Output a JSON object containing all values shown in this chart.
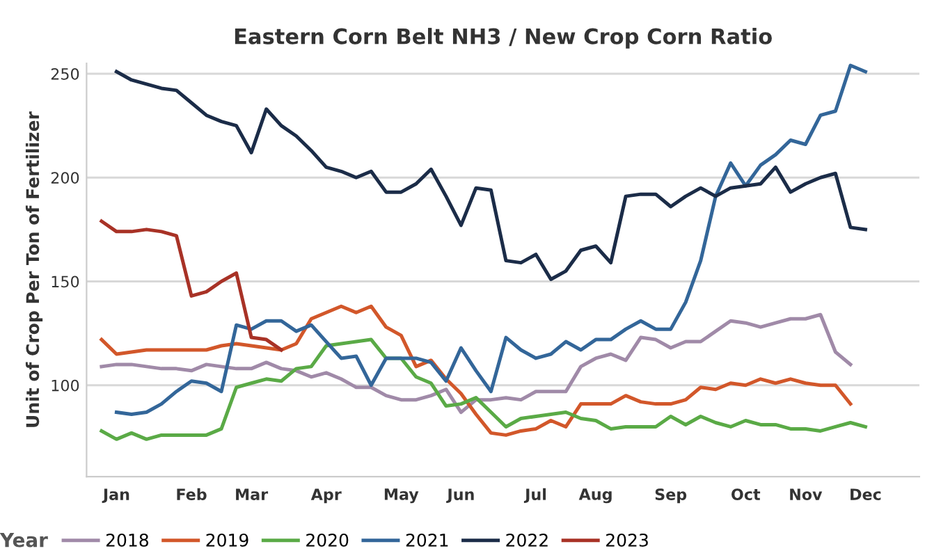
{
  "chart_data": {
    "type": "line",
    "title": "Eastern Corn Belt NH3 / New Crop Corn Ratio",
    "ylabel": "Unit of Crop Per Ton of Fertilizer",
    "legend_title": "Year",
    "categories": [
      null,
      "Jan",
      null,
      null,
      null,
      null,
      "Feb",
      null,
      null,
      null,
      "Mar",
      null,
      null,
      null,
      null,
      "Apr",
      null,
      null,
      null,
      null,
      "May",
      null,
      null,
      null,
      "Jun",
      null,
      null,
      null,
      null,
      "Jul",
      null,
      null,
      null,
      "Aug",
      null,
      null,
      null,
      null,
      "Sep",
      null,
      null,
      null,
      null,
      "Oct",
      null,
      null,
      null,
      "Nov",
      null,
      null,
      null,
      "Dec"
    ],
    "series": [
      {
        "name": "2018",
        "color": "#a08aa8",
        "values": [
          109,
          110,
          110,
          109,
          108,
          108,
          107,
          110,
          109,
          108,
          108,
          111,
          108,
          107,
          104,
          106,
          103,
          99,
          99,
          95,
          93,
          93,
          95,
          98,
          87,
          93,
          93,
          94,
          93,
          97,
          97,
          97,
          109,
          113,
          115,
          112,
          123,
          122,
          118,
          121,
          121,
          126,
          131,
          130,
          128,
          130,
          132,
          132,
          134,
          116,
          110,
          null
        ]
      },
      {
        "name": "2019",
        "color": "#d2572a",
        "values": [
          122,
          115,
          116,
          117,
          117,
          117,
          117,
          117,
          119,
          120,
          119,
          118,
          117,
          120,
          132,
          135,
          138,
          135,
          138,
          128,
          124,
          109,
          112,
          103,
          96,
          86,
          77,
          76,
          78,
          79,
          83,
          80,
          91,
          91,
          91,
          95,
          92,
          91,
          91,
          93,
          99,
          98,
          101,
          100,
          103,
          101,
          103,
          101,
          100,
          100,
          91,
          null
        ]
      },
      {
        "name": "2020",
        "color": "#5aaa46",
        "values": [
          78,
          74,
          77,
          74,
          76,
          76,
          76,
          76,
          79,
          99,
          101,
          103,
          102,
          108,
          109,
          119,
          120,
          121,
          122,
          113,
          113,
          104,
          101,
          90,
          91,
          94,
          87,
          80,
          84,
          85,
          86,
          87,
          84,
          83,
          79,
          80,
          80,
          80,
          85,
          81,
          85,
          82,
          80,
          83,
          81,
          81,
          79,
          79,
          78,
          80,
          82,
          80
        ]
      },
      {
        "name": "2021",
        "color": "#336699",
        "values": [
          null,
          87,
          86,
          87,
          91,
          97,
          102,
          101,
          97,
          129,
          127,
          131,
          131,
          126,
          129,
          121,
          113,
          114,
          100,
          113,
          113,
          113,
          111,
          102,
          118,
          107,
          97,
          123,
          117,
          113,
          115,
          121,
          117,
          122,
          122,
          127,
          131,
          127,
          127,
          140,
          160,
          191,
          207,
          196,
          206,
          211,
          218,
          216,
          230,
          232,
          254,
          251
        ]
      },
      {
        "name": "2022",
        "color": "#1b2c48",
        "values": [
          null,
          251,
          247,
          245,
          243,
          242,
          236,
          230,
          227,
          225,
          212,
          233,
          225,
          220,
          213,
          205,
          203,
          200,
          203,
          193,
          193,
          197,
          204,
          191,
          177,
          195,
          194,
          160,
          159,
          163,
          151,
          155,
          165,
          167,
          159,
          191,
          192,
          192,
          186,
          191,
          195,
          191,
          195,
          196,
          197,
          205,
          193,
          197,
          200,
          202,
          176,
          175
        ]
      },
      {
        "name": "2023",
        "color": "#a83226",
        "values": [
          179,
          174,
          174,
          175,
          174,
          172,
          143,
          145,
          150,
          154,
          123,
          122,
          117,
          null,
          null,
          null,
          null,
          null,
          null,
          null,
          null,
          null,
          null,
          null,
          null,
          null,
          null,
          null,
          null,
          null,
          null,
          null,
          null,
          null,
          null,
          null,
          null,
          null,
          null,
          null,
          null,
          null,
          null,
          null,
          null,
          null,
          null,
          null,
          null,
          null,
          null,
          null
        ]
      }
    ],
    "ylim": [
      56,
      255
    ],
    "yticks": [
      100,
      150,
      200,
      250
    ],
    "grid": "y",
    "legend": "bottom",
    "marker": "none",
    "line_style": "solid"
  }
}
